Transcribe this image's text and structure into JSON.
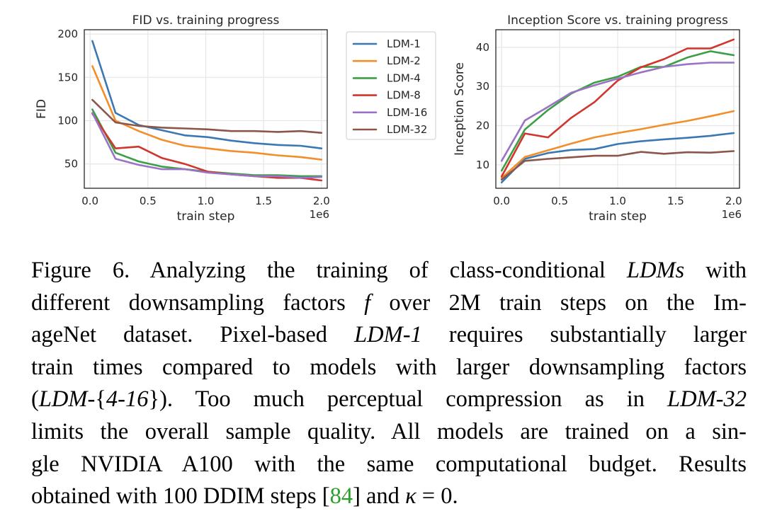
{
  "chart_data": [
    {
      "type": "line",
      "title": "FID vs. training progress",
      "xlabel": "train step",
      "ylabel": "FID",
      "x_offset_label": "1e6",
      "xlim": [
        -0.05,
        2.05
      ],
      "ylim": [
        22,
        205
      ],
      "xticks": [
        0.0,
        0.5,
        1.0,
        1.5,
        2.0
      ],
      "xtick_labels": [
        "0.0",
        "0.5",
        "1.0",
        "1.5",
        "2.0"
      ],
      "yticks": [
        50,
        100,
        150,
        200
      ],
      "ytick_labels": [
        "50",
        "100",
        "150",
        "200"
      ],
      "grid": true,
      "x": [
        0.02,
        0.22,
        0.42,
        0.62,
        0.82,
        1.02,
        1.22,
        1.42,
        1.62,
        1.82,
        2.0
      ],
      "series": [
        {
          "name": "LDM-1",
          "values": [
            192,
            109,
            95,
            89,
            83,
            81,
            77,
            74,
            72,
            71,
            68
          ]
        },
        {
          "name": "LDM-2",
          "values": [
            163,
            100,
            88,
            78,
            71,
            68,
            65,
            63,
            60,
            58,
            55
          ]
        },
        {
          "name": "LDM-4",
          "values": [
            113,
            63,
            53,
            47,
            44,
            41,
            39,
            37,
            37,
            36,
            36
          ]
        },
        {
          "name": "LDM-8",
          "values": [
            108,
            68,
            70,
            57,
            50,
            41,
            38,
            36,
            34,
            34,
            31
          ]
        },
        {
          "name": "LDM-16",
          "values": [
            109,
            56,
            49,
            44,
            44,
            40,
            38,
            36,
            36,
            34,
            35
          ]
        },
        {
          "name": "LDM-32",
          "values": [
            124,
            98,
            94,
            92,
            91,
            90,
            88,
            88,
            87,
            88,
            86
          ]
        }
      ]
    },
    {
      "type": "line",
      "title": "Inception Score vs. training progress",
      "xlabel": "train step",
      "ylabel": "Inception Score",
      "x_offset_label": "1e6",
      "xlim": [
        -0.05,
        2.05
      ],
      "ylim": [
        4,
        44.5
      ],
      "xticks": [
        0.0,
        0.5,
        1.0,
        1.5,
        2.0
      ],
      "xtick_labels": [
        "0.0",
        "0.5",
        "1.0",
        "1.5",
        "2.0"
      ],
      "yticks": [
        10,
        20,
        30,
        40
      ],
      "ytick_labels": [
        "10",
        "20",
        "30",
        "40"
      ],
      "grid": true,
      "x": [
        0.0,
        0.2,
        0.4,
        0.6,
        0.8,
        1.0,
        1.2,
        1.4,
        1.6,
        1.8,
        2.0
      ],
      "series": [
        {
          "name": "LDM-1",
          "values": [
            5.5,
            11.5,
            13,
            13.8,
            14,
            15.3,
            16,
            16.5,
            16.9,
            17.4,
            18.1
          ]
        },
        {
          "name": "LDM-2",
          "values": [
            6.6,
            12,
            13.7,
            15.4,
            17,
            18.1,
            19.1,
            20.2,
            21.2,
            22.4,
            23.7
          ]
        },
        {
          "name": "LDM-4",
          "values": [
            8.5,
            19,
            24,
            28.2,
            31,
            32.5,
            35,
            35,
            37.4,
            39,
            38
          ]
        },
        {
          "name": "LDM-8",
          "values": [
            7,
            18,
            17,
            22,
            26,
            31.5,
            34.9,
            37,
            39.7,
            39.7,
            42
          ]
        },
        {
          "name": "LDM-16",
          "values": [
            11,
            21.3,
            24.8,
            28.4,
            30.3,
            32,
            33.6,
            35,
            35.7,
            36.1,
            36.1
          ]
        },
        {
          "name": "LDM-32",
          "values": [
            6.2,
            11,
            11.5,
            11.9,
            12.3,
            12.3,
            13.3,
            12.8,
            13.2,
            13.1,
            13.5
          ]
        }
      ]
    }
  ],
  "legend": {
    "placement": "between-charts",
    "entries": [
      "LDM-1",
      "LDM-2",
      "LDM-4",
      "LDM-8",
      "LDM-16",
      "LDM-32"
    ]
  },
  "colors": {
    "LDM-1": "#3a78b4",
    "LDM-2": "#f28e2b",
    "LDM-4": "#3aa043",
    "LDM-8": "#d0352e",
    "LDM-16": "#9b73c6",
    "LDM-32": "#8c5648",
    "grid": "#e6e6e6",
    "axes": "#262626",
    "citation": "#2ca02c"
  },
  "caption": {
    "l1_a": "Figure 6.  Analyzing the training of class-conditional ",
    "l1_b": "LDMs",
    "l1_c": " with",
    "l2_a": "different downsampling factors ",
    "l2_b": "f",
    "l2_c": " over 2M train steps on the Im-",
    "l3_a": "ageNet dataset.  Pixel-based ",
    "l3_b": "LDM-1",
    "l3_c": " requires substantially larger",
    "l4": "train times compared to models with larger downsampling factors",
    "l5_a": "(",
    "l5_b": "LDM-",
    "l5_c": "{",
    "l5_d": "4-16",
    "l5_e": "}).  Too much perceptual compression as in ",
    "l5_f": "LDM-32",
    "l6": "limits the overall sample quality.  All models are trained on a sin-",
    "l7": "gle NVIDIA A100 with the same computational budget.  Results",
    "l8_a": "obtained with 100 DDIM steps [",
    "l8_b": "84",
    "l8_c": "] and ",
    "l8_d": "κ",
    "l8_e": " = 0."
  }
}
